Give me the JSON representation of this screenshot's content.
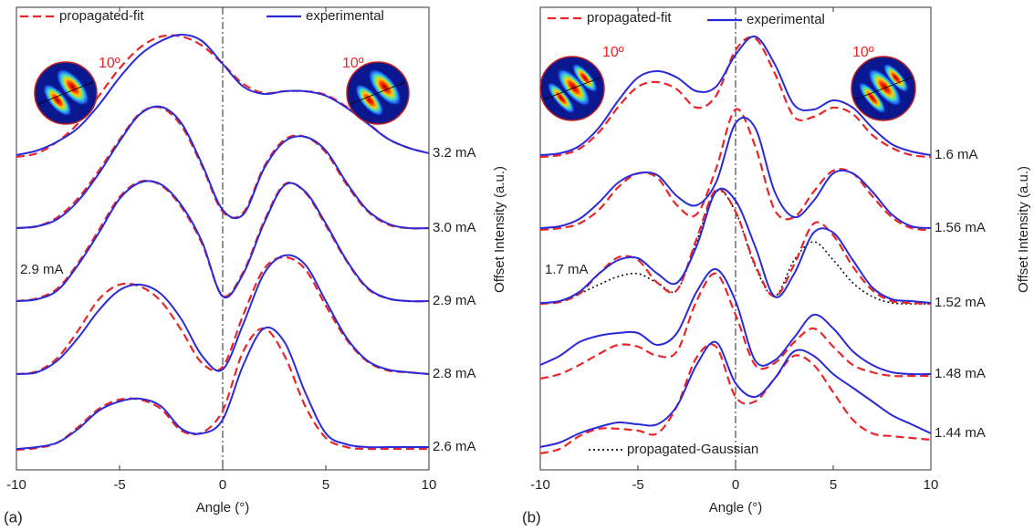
{
  "chart_data": [
    {
      "type": "line",
      "panel_label": "(a)",
      "xlabel": "Angle (°)",
      "ylabel": "Offset Intensity (a.u.)",
      "x": [
        -10,
        -9,
        -8,
        -7,
        -6,
        -5,
        -4,
        -3,
        -2,
        -1,
        0,
        1,
        2,
        3,
        4,
        5,
        6,
        7,
        8,
        9,
        10
      ],
      "xlim": [
        -10,
        10
      ],
      "xticks": [
        -10,
        -5,
        0,
        5,
        10
      ],
      "ylim": [
        -5,
        502
      ],
      "vline": 0,
      "legend": {
        "fit": "propagated-fit",
        "experimental": "experimental"
      },
      "colors": {
        "fit": "#e8262a",
        "experimental": "#2a2ad8"
      },
      "inset_labels": [
        "10º",
        "10º"
      ],
      "inline_label": "2.9 mA",
      "curves": [
        {
          "label": "3.2 mA",
          "experimental": [
            340,
            345,
            355,
            370,
            395,
            425,
            450,
            465,
            472,
            465,
            440,
            415,
            407,
            410,
            410,
            405,
            392,
            375,
            358,
            348,
            342
          ],
          "fit": [
            338,
            342,
            355,
            375,
            405,
            435,
            458,
            470,
            470,
            460,
            440,
            418,
            408,
            410,
            410,
            406,
            393,
            376,
            358,
            348,
            342
          ]
        },
        {
          "label": "3.0 mA",
          "experimental": [
            260,
            262,
            270,
            290,
            320,
            355,
            385,
            393,
            375,
            330,
            280,
            275,
            325,
            355,
            360,
            345,
            310,
            280,
            265,
            260,
            260
          ],
          "fit": [
            260,
            262,
            272,
            293,
            323,
            357,
            386,
            392,
            372,
            328,
            278,
            277,
            327,
            357,
            360,
            343,
            308,
            279,
            264,
            260,
            260
          ]
        },
        {
          "label": "2.9 mA",
          "experimental": [
            180,
            182,
            192,
            220,
            255,
            292,
            310,
            308,
            285,
            245,
            185,
            210,
            265,
            307,
            300,
            265,
            225,
            195,
            183,
            180,
            180
          ],
          "fit": [
            180,
            183,
            194,
            222,
            258,
            294,
            311,
            307,
            283,
            243,
            186,
            212,
            267,
            308,
            299,
            263,
            224,
            194,
            183,
            180,
            180
          ]
        },
        {
          "label": "2.8 mA",
          "experimental": [
            100,
            102,
            115,
            140,
            170,
            192,
            198,
            188,
            160,
            120,
            105,
            155,
            210,
            230,
            220,
            180,
            140,
            115,
            105,
            102,
            100
          ],
          "fit": [
            100,
            103,
            118,
            148,
            182,
            198,
            196,
            180,
            148,
            112,
            108,
            165,
            215,
            228,
            215,
            175,
            138,
            114,
            104,
            102,
            100
          ]
        },
        {
          "label": "2.6 mA",
          "experimental": [
            18,
            20,
            25,
            40,
            60,
            70,
            73,
            65,
            40,
            35,
            50,
            110,
            150,
            135,
            80,
            35,
            23,
            20,
            20,
            20,
            20
          ],
          "fit": [
            17,
            19,
            25,
            42,
            62,
            72,
            72,
            62,
            38,
            36,
            60,
            125,
            150,
            120,
            65,
            30,
            20,
            18,
            18,
            18,
            18
          ]
        }
      ]
    },
    {
      "type": "line",
      "panel_label": "(b)",
      "xlabel": "Angle (°)",
      "ylabel": "Offset Intensity (a.u.)",
      "x": [
        -10,
        -9,
        -8,
        -7,
        -6,
        -5,
        -4,
        -3,
        -2,
        -1,
        0,
        1,
        2,
        3,
        4,
        5,
        6,
        7,
        8,
        9,
        10
      ],
      "xlim": [
        -10,
        10
      ],
      "xticks": [
        -10,
        -5,
        0,
        5,
        10
      ],
      "ylim": [
        -5,
        502
      ],
      "vline": 0,
      "legend": {
        "fit": "propagated-fit",
        "experimental": "experimental",
        "gaussian": "propagated-Gaussian"
      },
      "colors": {
        "fit": "#e8262a",
        "experimental": "#2a2ad8",
        "gaussian": "#111111"
      },
      "inset_labels": [
        "10º",
        "10º"
      ],
      "inline_label": "1.7 mA",
      "curves": [
        {
          "label": "1.6 mA",
          "experimental": [
            340,
            342,
            350,
            370,
            400,
            425,
            432,
            425,
            410,
            415,
            450,
            470,
            440,
            395,
            390,
            400,
            392,
            370,
            352,
            344,
            340
          ],
          "fit": [
            338,
            340,
            347,
            365,
            393,
            415,
            420,
            412,
            392,
            405,
            455,
            468,
            430,
            382,
            382,
            392,
            385,
            362,
            348,
            340,
            338
          ]
        },
        {
          "label": "1.56 mA",
          "experimental": [
            260,
            262,
            270,
            288,
            310,
            320,
            318,
            295,
            285,
            310,
            375,
            370,
            300,
            272,
            290,
            320,
            320,
            300,
            275,
            262,
            260
          ],
          "fit": [
            258,
            260,
            265,
            280,
            305,
            320,
            315,
            285,
            275,
            325,
            390,
            350,
            280,
            272,
            300,
            323,
            320,
            295,
            272,
            260,
            258
          ]
        },
        {
          "label": "1.52 mA",
          "experimental": [
            178,
            180,
            190,
            210,
            225,
            227,
            210,
            200,
            240,
            300,
            290,
            240,
            185,
            210,
            255,
            255,
            225,
            195,
            182,
            180,
            178
          ],
          "fit": [
            177,
            179,
            188,
            210,
            228,
            225,
            200,
            192,
            248,
            302,
            278,
            220,
            185,
            220,
            265,
            252,
            218,
            192,
            180,
            178,
            177
          ],
          "gaussian": [
            177,
            180,
            188,
            198,
            207,
            210,
            200,
            192,
            245,
            300,
            278,
            218,
            185,
            225,
            245,
            225,
            200,
            185,
            178,
            177,
            177
          ]
        },
        {
          "label": "1.48 mA",
          "experimental": [
            110,
            120,
            135,
            142,
            145,
            145,
            132,
            145,
            190,
            215,
            180,
            115,
            115,
            140,
            165,
            150,
            125,
            110,
            102,
            100,
            100
          ],
          "fit": [
            95,
            100,
            110,
            122,
            132,
            130,
            120,
            125,
            180,
            210,
            165,
            110,
            112,
            135,
            150,
            130,
            110,
            102,
            98,
            98,
            98
          ]
        },
        {
          "label": "1.44 mA",
          "experimental": [
            20,
            25,
            35,
            42,
            47,
            45,
            45,
            65,
            110,
            135,
            90,
            75,
            95,
            125,
            120,
            100,
            85,
            70,
            55,
            45,
            35
          ],
          "fit": [
            13,
            18,
            32,
            40,
            40,
            38,
            35,
            65,
            118,
            130,
            75,
            70,
            95,
            120,
            110,
            80,
            50,
            35,
            32,
            30,
            28
          ]
        }
      ]
    }
  ]
}
